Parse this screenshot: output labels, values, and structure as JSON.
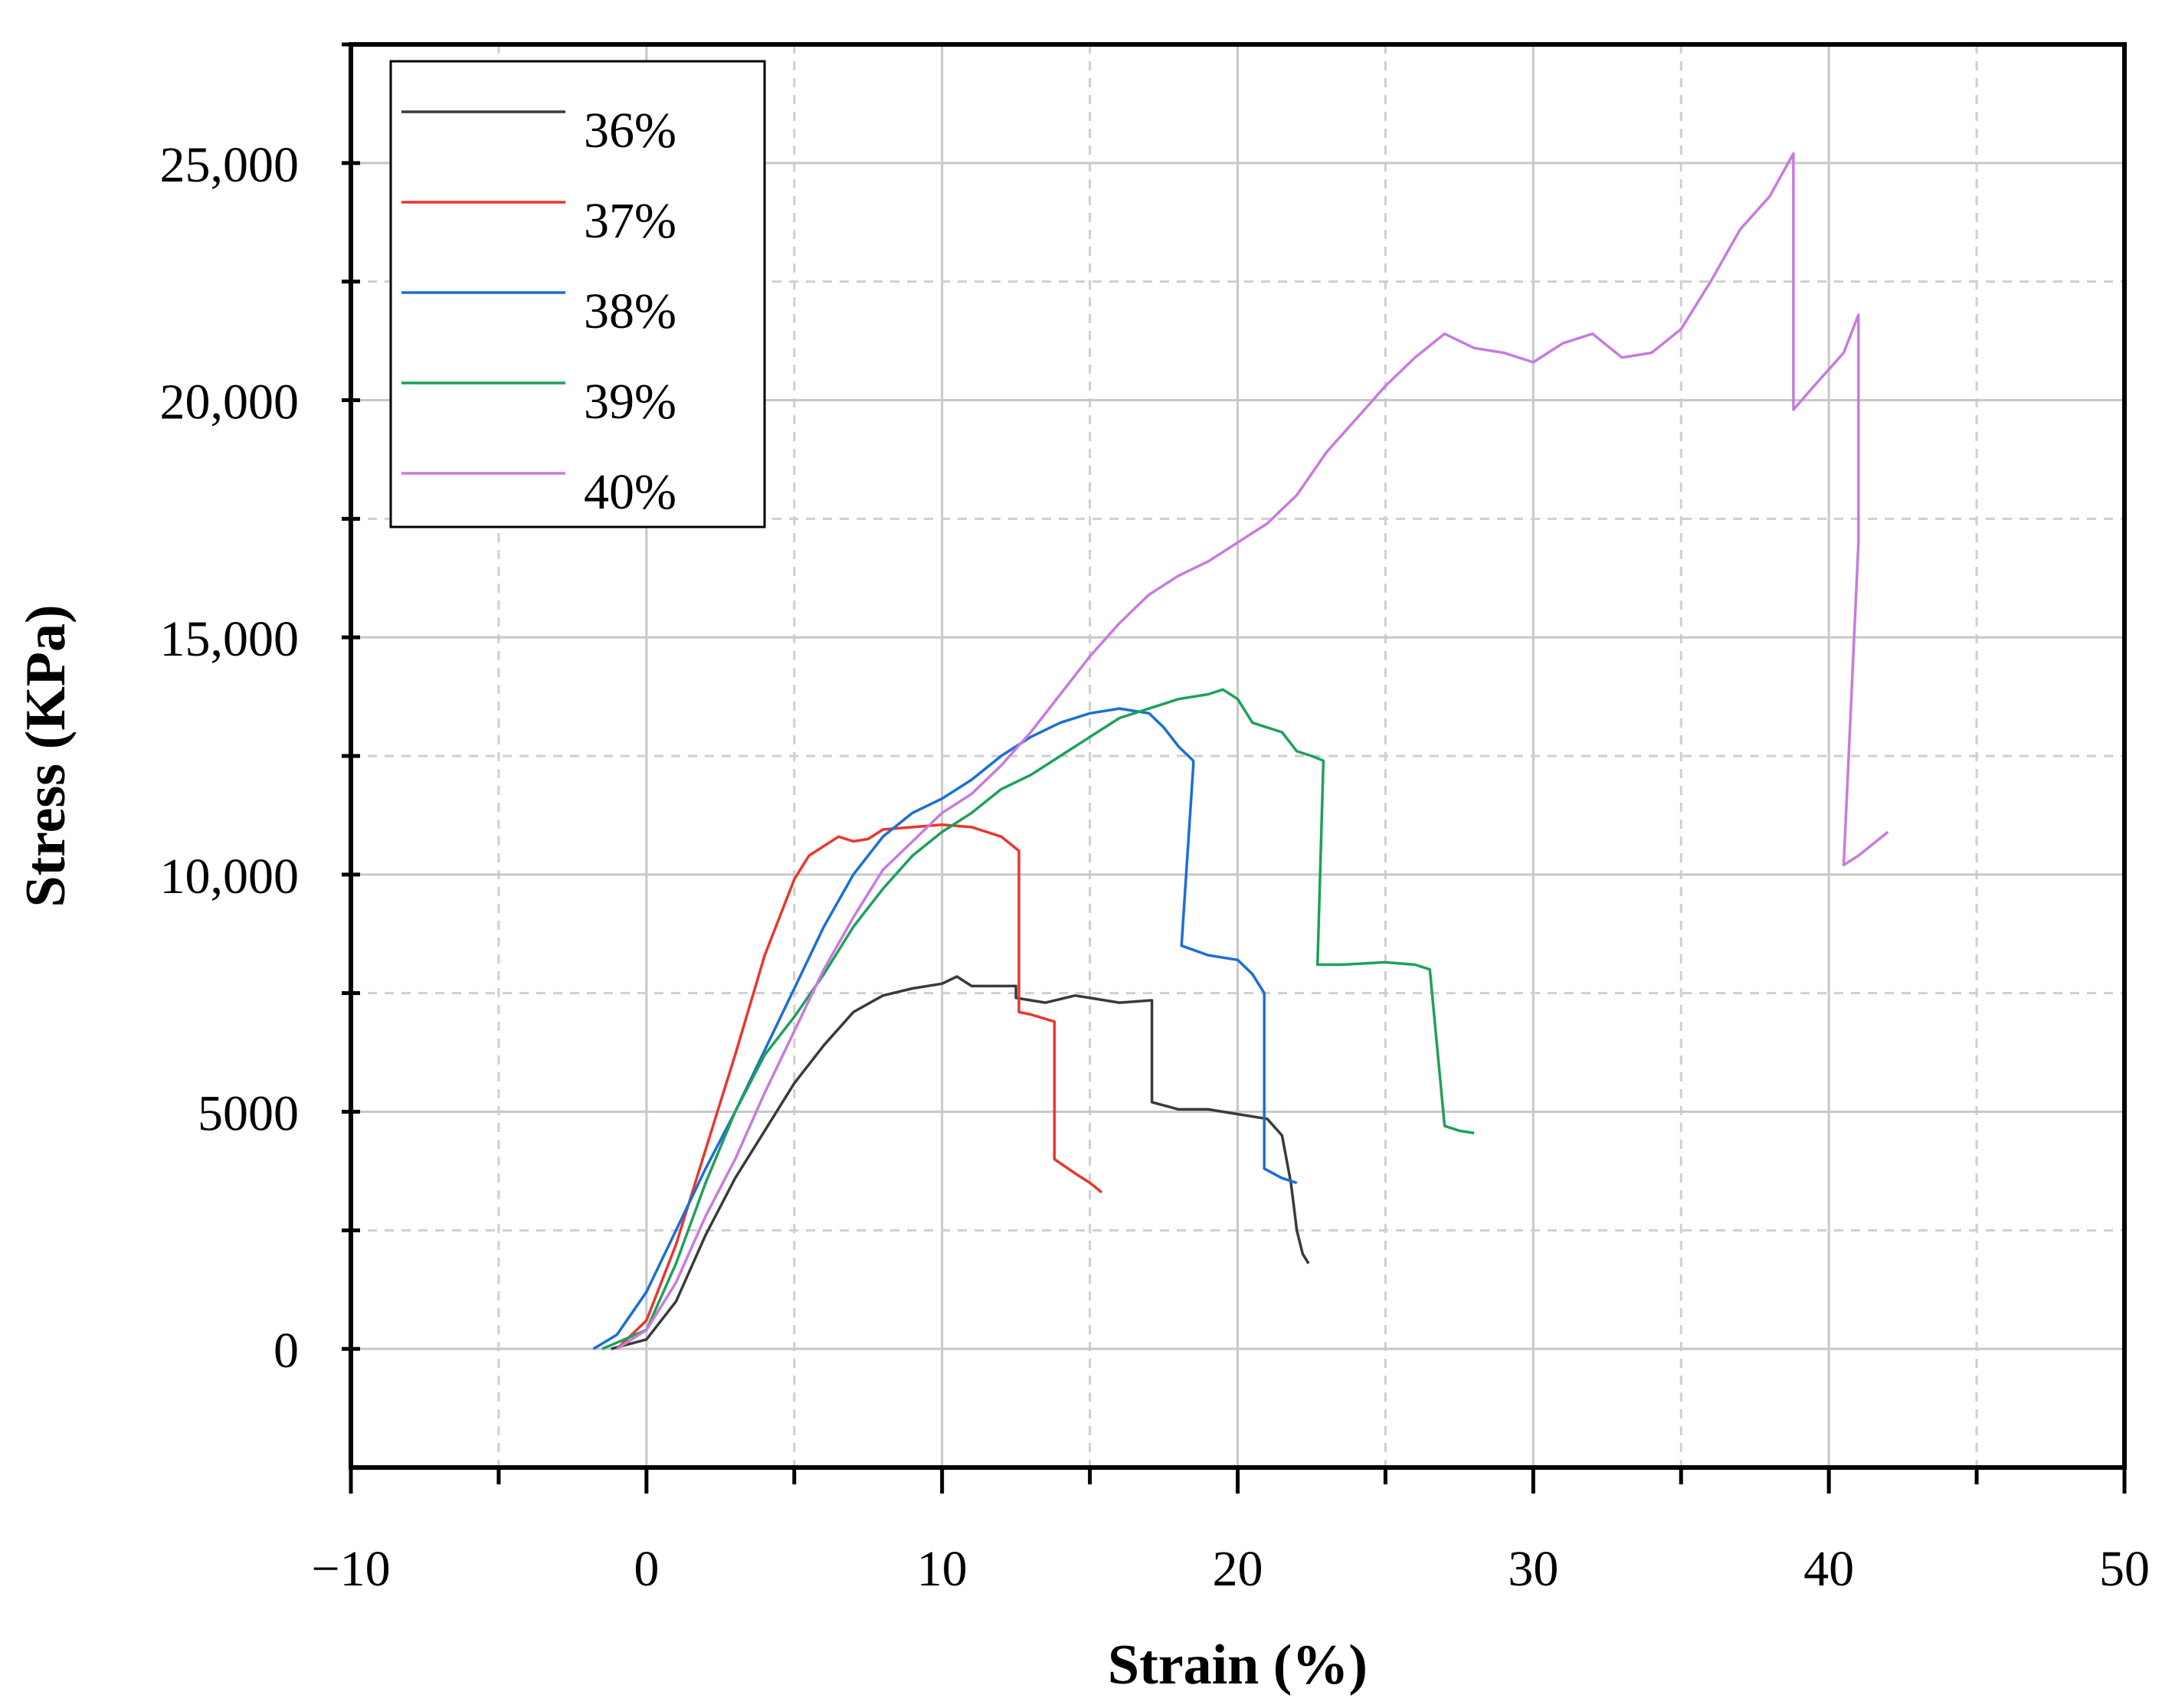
{
  "chart_data": {
    "type": "line",
    "title": "",
    "xlabel": "Strain (%)",
    "ylabel": "Stress (KPa)",
    "xlim": [
      -10,
      50
    ],
    "ylim": [
      -2500,
      27500
    ],
    "x_ticks": [
      -10,
      0,
      10,
      20,
      30,
      40,
      50
    ],
    "x_tick_labels": [
      "−10",
      "0",
      "10",
      "20",
      "30",
      "40",
      "50"
    ],
    "y_ticks": [
      0,
      5000,
      10000,
      15000,
      20000,
      25000
    ],
    "y_tick_labels": [
      "0",
      "5000",
      "10,000",
      "15,000",
      "20,000",
      "25,000"
    ],
    "grid": true,
    "legend_position": "top-left",
    "series": [
      {
        "name": "36%",
        "color": "#3a3a3a",
        "points": [
          [
            -1.2,
            0
          ],
          [
            0,
            200
          ],
          [
            1,
            1000
          ],
          [
            2,
            2400
          ],
          [
            3,
            3600
          ],
          [
            4,
            4600
          ],
          [
            5,
            5600
          ],
          [
            6,
            6400
          ],
          [
            7,
            7100
          ],
          [
            8,
            7450
          ],
          [
            9,
            7600
          ],
          [
            10,
            7700
          ],
          [
            10.5,
            7850
          ],
          [
            11,
            7650
          ],
          [
            12,
            7650
          ],
          [
            12.5,
            7650
          ],
          [
            12.5,
            7400
          ],
          [
            13.5,
            7300
          ],
          [
            14.5,
            7450
          ],
          [
            15,
            7400
          ],
          [
            16,
            7300
          ],
          [
            17.1,
            7350
          ],
          [
            17.1,
            5200
          ],
          [
            18,
            5050
          ],
          [
            19,
            5050
          ],
          [
            20,
            4950
          ],
          [
            21,
            4850
          ],
          [
            21.5,
            4500
          ],
          [
            21.8,
            3500
          ],
          [
            22,
            2500
          ],
          [
            22.2,
            2000
          ],
          [
            22.4,
            1800
          ]
        ]
      },
      {
        "name": "37%",
        "color": "#e8372f",
        "points": [
          [
            -1,
            0
          ],
          [
            0,
            600
          ],
          [
            1,
            2200
          ],
          [
            2,
            4200
          ],
          [
            3,
            6200
          ],
          [
            4,
            8300
          ],
          [
            5,
            9900
          ],
          [
            5.5,
            10400
          ],
          [
            6,
            10600
          ],
          [
            6.5,
            10800
          ],
          [
            7,
            10700
          ],
          [
            7.5,
            10750
          ],
          [
            8,
            10950
          ],
          [
            9,
            11000
          ],
          [
            10,
            11050
          ],
          [
            11,
            11000
          ],
          [
            12,
            10800
          ],
          [
            12.6,
            10500
          ],
          [
            12.6,
            7100
          ],
          [
            13,
            7050
          ],
          [
            13.8,
            6900
          ],
          [
            13.8,
            4000
          ],
          [
            14.5,
            3700
          ],
          [
            15,
            3500
          ],
          [
            15.4,
            3300
          ]
        ]
      },
      {
        "name": "38%",
        "color": "#1a6fd6",
        "points": [
          [
            -1.8,
            0
          ],
          [
            -1,
            300
          ],
          [
            0,
            1200
          ],
          [
            1,
            2500
          ],
          [
            2,
            3800
          ],
          [
            3,
            5000
          ],
          [
            4,
            6300
          ],
          [
            5,
            7600
          ],
          [
            6,
            8900
          ],
          [
            7,
            10000
          ],
          [
            8,
            10800
          ],
          [
            9,
            11300
          ],
          [
            10,
            11600
          ],
          [
            11,
            12000
          ],
          [
            12,
            12500
          ],
          [
            13,
            12900
          ],
          [
            14,
            13200
          ],
          [
            15,
            13400
          ],
          [
            16,
            13500
          ],
          [
            17,
            13400
          ],
          [
            17.5,
            13100
          ],
          [
            18,
            12700
          ],
          [
            18.5,
            12400
          ],
          [
            18.5,
            12300
          ],
          [
            18.1,
            8500
          ],
          [
            19,
            8300
          ],
          [
            20,
            8200
          ],
          [
            20.5,
            7900
          ],
          [
            20.9,
            7500
          ],
          [
            20.9,
            3800
          ],
          [
            21.5,
            3600
          ],
          [
            22,
            3500
          ]
        ]
      },
      {
        "name": "39%",
        "color": "#1fa05a",
        "points": [
          [
            -1.5,
            0
          ],
          [
            0,
            400
          ],
          [
            1,
            1800
          ],
          [
            2,
            3500
          ],
          [
            3,
            5000
          ],
          [
            4,
            6200
          ],
          [
            5,
            7000
          ],
          [
            6,
            7900
          ],
          [
            7,
            8900
          ],
          [
            8,
            9700
          ],
          [
            9,
            10400
          ],
          [
            10,
            10900
          ],
          [
            11,
            11300
          ],
          [
            12,
            11800
          ],
          [
            13,
            12100
          ],
          [
            14,
            12500
          ],
          [
            15,
            12900
          ],
          [
            16,
            13300
          ],
          [
            17,
            13500
          ],
          [
            18,
            13700
          ],
          [
            19,
            13800
          ],
          [
            19.5,
            13900
          ],
          [
            20,
            13700
          ],
          [
            20.5,
            13200
          ],
          [
            21,
            13100
          ],
          [
            21.5,
            13000
          ],
          [
            22,
            12600
          ],
          [
            22.5,
            12500
          ],
          [
            22.9,
            12400
          ],
          [
            22.7,
            8100
          ],
          [
            23.5,
            8100
          ],
          [
            25,
            8150
          ],
          [
            26,
            8100
          ],
          [
            26.5,
            8000
          ],
          [
            27,
            4700
          ],
          [
            27.5,
            4600
          ],
          [
            28,
            4550
          ]
        ]
      },
      {
        "name": "40%",
        "color": "#c77be0",
        "points": [
          [
            -1,
            0
          ],
          [
            0,
            400
          ],
          [
            1,
            1400
          ],
          [
            2,
            2800
          ],
          [
            3,
            4000
          ],
          [
            4,
            5400
          ],
          [
            5,
            6700
          ],
          [
            6,
            8000
          ],
          [
            7,
            9100
          ],
          [
            8,
            10100
          ],
          [
            9,
            10700
          ],
          [
            10,
            11300
          ],
          [
            11,
            11700
          ],
          [
            12,
            12300
          ],
          [
            13,
            13000
          ],
          [
            14,
            13800
          ],
          [
            15,
            14600
          ],
          [
            16,
            15300
          ],
          [
            17,
            15900
          ],
          [
            18,
            16300
          ],
          [
            19,
            16600
          ],
          [
            20,
            17000
          ],
          [
            21,
            17400
          ],
          [
            22,
            18000
          ],
          [
            23,
            18900
          ],
          [
            24,
            19600
          ],
          [
            25,
            20300
          ],
          [
            26,
            20900
          ],
          [
            27,
            21400
          ],
          [
            28,
            21100
          ],
          [
            29,
            21000
          ],
          [
            30,
            20800
          ],
          [
            31,
            21200
          ],
          [
            32,
            21400
          ],
          [
            33,
            20900
          ],
          [
            34,
            21000
          ],
          [
            35,
            21500
          ],
          [
            36,
            22500
          ],
          [
            37,
            23600
          ],
          [
            38,
            24300
          ],
          [
            38.8,
            25200
          ],
          [
            38.8,
            19800
          ],
          [
            39.5,
            20300
          ],
          [
            40.5,
            21000
          ],
          [
            41,
            21800
          ],
          [
            41,
            17000
          ],
          [
            40.5,
            10200
          ],
          [
            41,
            10400
          ],
          [
            42,
            10900
          ]
        ]
      }
    ]
  }
}
